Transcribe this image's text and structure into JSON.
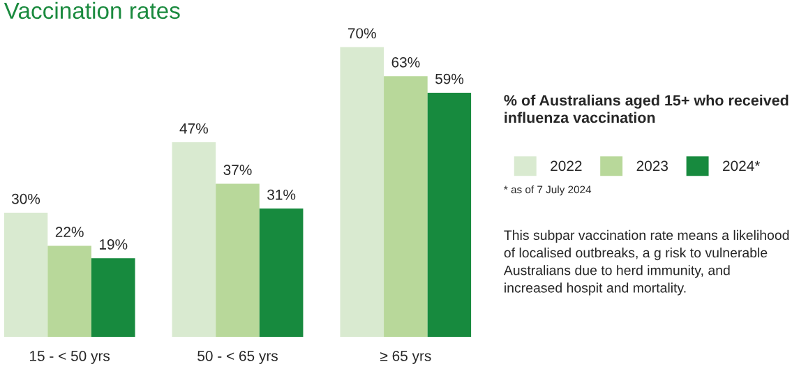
{
  "chart_data": {
    "type": "bar",
    "title": "Vaccination rates",
    "legend_title": "% of Australians aged 15+ who received influenza vaccination",
    "categories": [
      "15 - < 50 yrs",
      "50 - < 65 yrs",
      "≥ 65 yrs"
    ],
    "series": [
      {
        "name": "2022",
        "color": "#d9ead0",
        "values": [
          30,
          47,
          70
        ],
        "value_labels": [
          "30%",
          "47%",
          "70%"
        ]
      },
      {
        "name": "2023",
        "color": "#b8d89a",
        "values": [
          22,
          37,
          63
        ],
        "value_labels": [
          "22%",
          "37%",
          "63%"
        ]
      },
      {
        "name": "2024*",
        "color": "#178a3e",
        "values": [
          19,
          31,
          59
        ],
        "value_labels": [
          "19%",
          "31%",
          "59%"
        ]
      }
    ],
    "legend": "right",
    "grid": false,
    "annotations": [
      "* as of 7 July 2024",
      "This subpar vaccination rate means a likelihood of localised outbreaks, a g risk to vulnerable Australians due to herd immunity, and increased hospit and mortality."
    ]
  }
}
